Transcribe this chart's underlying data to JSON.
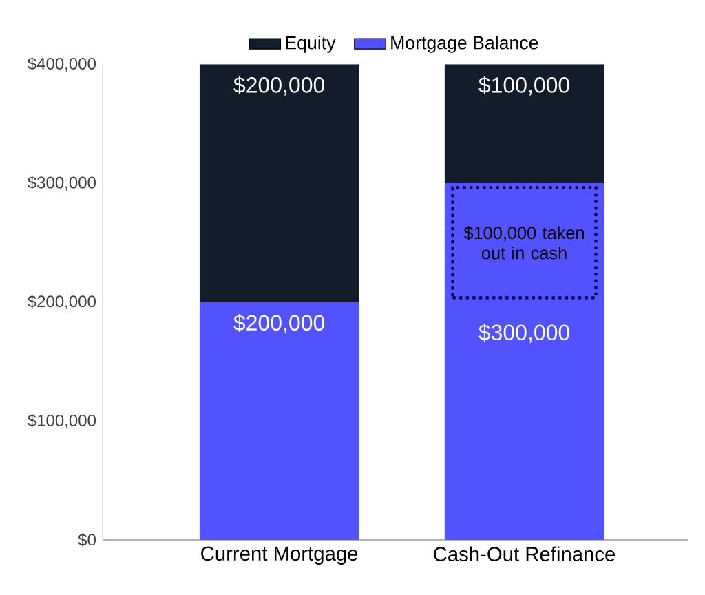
{
  "chart_data": {
    "type": "bar",
    "stacked": true,
    "categories": [
      "Current Mortgage",
      "Cash-Out Refinance"
    ],
    "series": [
      {
        "name": "Mortgage Balance",
        "color": "#5252ff",
        "values": [
          200000,
          300000
        ],
        "value_labels": [
          "$200,000",
          "$300,000"
        ]
      },
      {
        "name": "Equity",
        "color": "#121c2b",
        "values": [
          200000,
          100000
        ],
        "value_labels": [
          "$200,000",
          "$100,000"
        ]
      }
    ],
    "ylim": [
      0,
      400000
    ],
    "yticks": [
      {
        "value": 0,
        "label": "$0"
      },
      {
        "value": 100000,
        "label": "$100,000"
      },
      {
        "value": 200000,
        "label": "$200,000"
      },
      {
        "value": 300000,
        "label": "$300,000"
      },
      {
        "value": 400000,
        "label": "$400,000"
      }
    ],
    "annotations": [
      "$100,000 taken out in cash"
    ],
    "legend": "top",
    "grid": false
  }
}
